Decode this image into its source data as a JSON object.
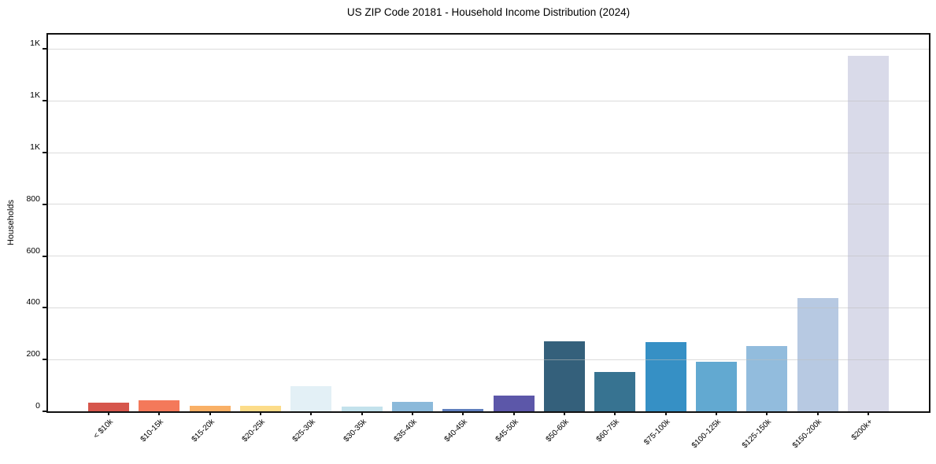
{
  "chart_data": {
    "type": "bar",
    "title": "US ZIP Code 20181 - Household Income Distribution (2024)",
    "xlabel": "",
    "ylabel": "Households",
    "categories": [
      "< $10k",
      "$10-15k",
      "$15-20k",
      "$20-25k",
      "$25-30k",
      "$30-35k",
      "$35-40k",
      "$40-45k",
      "$45-50k",
      "$50-60k",
      "$60-75k",
      "$75-100k",
      "$100-125k",
      "$125-150k",
      "$150-200k",
      "$200k+"
    ],
    "values": [
      33,
      42,
      22,
      20,
      98,
      19,
      38,
      9,
      62,
      270,
      151,
      267,
      192,
      252,
      438,
      1375
    ],
    "bar_colors": [
      "#d6564c",
      "#f4795a",
      "#f9b066",
      "#fcdc89",
      "#e3f0f6",
      "#c3e2ec",
      "#8bb9da",
      "#5f7fbe",
      "#5c57a9",
      "#34607b",
      "#377391",
      "#3690c5",
      "#62a9d1",
      "#92bcdd",
      "#b7c9e2",
      "#d9dae9"
    ],
    "y_ticks": {
      "values": [
        0,
        200,
        400,
        600,
        800,
        1000,
        1200,
        1400
      ],
      "labels": [
        "0",
        "200",
        "400",
        "600",
        "800",
        "1K",
        "1K",
        "1K"
      ]
    },
    "ylim": [
      0,
      1456
    ],
    "grid": "horizontal",
    "legend": "none"
  },
  "colors": {
    "background": "#ffffff",
    "spine": "#111111",
    "gridline": "#bebebe",
    "text": "#000000"
  }
}
